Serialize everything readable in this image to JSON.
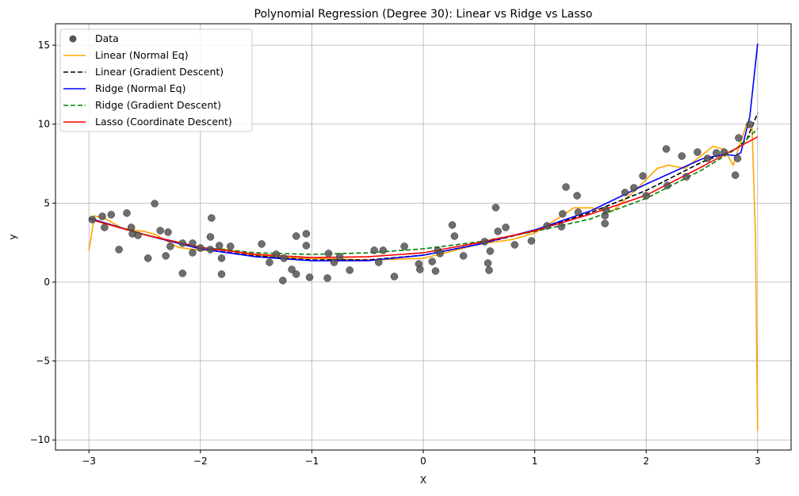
{
  "chart_data": {
    "type": "scatter",
    "title": "Polynomial Regression (Degree 30): Linear vs Ridge vs Lasso",
    "xlabel": "X",
    "ylabel": "y",
    "xlim": [
      -3.3,
      3.3
    ],
    "ylim": [
      -10.64,
      16.36
    ],
    "xticks": [
      -3,
      -2,
      -1,
      0,
      1,
      2,
      3
    ],
    "yticks": [
      -10,
      -5,
      0,
      5,
      10,
      15
    ],
    "xtick_labels": [
      "−3",
      "−2",
      "−1",
      "0",
      "1",
      "2",
      "3"
    ],
    "ytick_labels": [
      "−10",
      "−5",
      "0",
      "5",
      "10",
      "15"
    ],
    "grid": true,
    "legend_placement": "top-left",
    "scatter": {
      "name": "Data",
      "color": "#555555",
      "x": [
        -2.97,
        -2.88,
        -2.86,
        -2.8,
        -2.73,
        -2.66,
        -2.62,
        -2.61,
        -2.56,
        -2.47,
        -2.41,
        -2.36,
        -2.31,
        -2.29,
        -2.27,
        -2.16,
        -2.16,
        -2.07,
        -2.07,
        -2.0,
        -1.91,
        -1.9,
        -1.91,
        -1.83,
        -1.81,
        -1.81,
        -1.73,
        -1.45,
        -1.38,
        -1.32,
        -1.26,
        -1.25,
        -1.18,
        -1.14,
        -1.14,
        -1.05,
        -1.05,
        -1.02,
        -0.86,
        -0.85,
        -0.8,
        -0.75,
        -0.66,
        -0.44,
        -0.4,
        -0.36,
        -0.26,
        -0.17,
        -0.04,
        -0.03,
        0.08,
        0.11,
        0.13,
        0.15,
        0.26,
        0.28,
        0.36,
        0.55,
        0.58,
        0.59,
        0.6,
        0.65,
        0.67,
        0.74,
        0.82,
        0.97,
        1.11,
        1.24,
        1.25,
        1.28,
        1.38,
        1.39,
        1.63,
        1.63,
        1.64,
        1.81,
        1.89,
        1.97,
        2.0,
        2.18,
        2.19,
        2.32,
        2.36,
        2.46,
        2.55,
        2.63,
        2.7,
        2.8,
        2.82,
        2.83,
        2.93
      ],
      "y": [
        3.96,
        4.16,
        3.46,
        4.27,
        2.06,
        4.37,
        3.46,
        3.06,
        2.96,
        1.51,
        4.97,
        3.26,
        1.66,
        3.16,
        2.26,
        2.46,
        0.55,
        2.46,
        1.86,
        2.16,
        2.86,
        4.06,
        2.06,
        2.31,
        1.51,
        0.5,
        2.26,
        2.41,
        1.25,
        1.76,
        0.1,
        1.51,
        0.8,
        2.91,
        0.5,
        3.06,
        2.31,
        0.3,
        0.25,
        1.81,
        1.25,
        1.61,
        0.75,
        2.01,
        1.25,
        2.01,
        0.35,
        2.26,
        1.15,
        0.8,
        1.3,
        0.7,
        2.01,
        1.81,
        3.61,
        2.91,
        1.66,
        2.56,
        1.2,
        0.75,
        1.96,
        4.72,
        3.21,
        3.46,
        2.36,
        2.61,
        3.56,
        3.51,
        4.32,
        6.02,
        5.47,
        4.42,
        4.21,
        3.71,
        4.57,
        5.67,
        5.97,
        6.72,
        5.47,
        8.43,
        6.12,
        7.98,
        6.67,
        8.23,
        7.83,
        8.18,
        8.23,
        6.77,
        7.83,
        9.13,
        9.98
      ]
    },
    "series": [
      {
        "name": "Linear (Normal Eq)",
        "color": "#FFA500",
        "style": "solid",
        "x": [
          -3,
          -2.95,
          -2.85,
          -2.7,
          -2.5,
          -2.4,
          -2.2,
          -2.0,
          -1.8,
          -1.6,
          -1.3,
          -1.0,
          -0.5,
          0,
          0.5,
          0.8,
          1.0,
          1.2,
          1.35,
          1.5,
          1.7,
          1.9,
          2.1,
          2.2,
          2.35,
          2.6,
          2.7,
          2.78,
          2.9,
          2.95,
          2.98,
          3.0
        ],
        "y": [
          2.0,
          4.2,
          4.0,
          3.4,
          3.2,
          3.0,
          2.2,
          2.0,
          2.1,
          1.8,
          1.55,
          1.5,
          1.4,
          1.5,
          2.4,
          2.7,
          3.1,
          4.0,
          4.7,
          4.7,
          4.5,
          5.8,
          7.2,
          7.4,
          7.2,
          8.6,
          8.4,
          7.4,
          10.0,
          9.8,
          3.0,
          -9.4
        ]
      },
      {
        "name": "Linear (Gradient Descent)",
        "color": "#000000",
        "style": "dashed",
        "x": [
          -3,
          -2.5,
          -2,
          -1.5,
          -1,
          -0.5,
          0,
          0.5,
          1,
          1.5,
          2,
          2.5,
          2.8,
          2.9,
          3.0
        ],
        "y": [
          4.0,
          3.0,
          2.1,
          1.65,
          1.4,
          1.4,
          1.7,
          2.4,
          3.25,
          4.4,
          5.8,
          7.6,
          8.4,
          9.0,
          10.7
        ]
      },
      {
        "name": "Ridge (Normal Eq)",
        "color": "#0000FF",
        "style": "solid",
        "x": [
          -3,
          -2.5,
          -2,
          -1.5,
          -1,
          -0.5,
          0,
          0.5,
          1,
          1.5,
          2,
          2.5,
          2.7,
          2.8,
          2.85,
          2.93,
          3.0
        ],
        "y": [
          4.05,
          3.0,
          2.1,
          1.6,
          1.35,
          1.35,
          1.7,
          2.4,
          3.3,
          4.5,
          6.2,
          7.8,
          8.1,
          8.0,
          8.2,
          10.5,
          15.1
        ]
      },
      {
        "name": "Ridge (Gradient Descent)",
        "color": "#008000",
        "style": "dashed",
        "x": [
          -3,
          -2.5,
          -2,
          -1.5,
          -1,
          -0.5,
          0,
          0.5,
          1,
          1.5,
          2,
          2.5,
          2.8,
          3.0
        ],
        "y": [
          4.0,
          3.0,
          2.2,
          1.85,
          1.75,
          1.85,
          2.1,
          2.55,
          3.2,
          4.0,
          5.3,
          7.1,
          8.4,
          9.7
        ]
      },
      {
        "name": "Lasso (Coordinate Descent)",
        "color": "#FF0000",
        "style": "solid",
        "x": [
          -3,
          -2.5,
          -2,
          -1.5,
          -1,
          -0.5,
          0,
          0.5,
          1,
          1.5,
          2,
          2.5,
          3.0
        ],
        "y": [
          4.0,
          3.0,
          2.2,
          1.75,
          1.55,
          1.6,
          1.85,
          2.5,
          3.25,
          4.3,
          5.5,
          7.3,
          9.2
        ]
      }
    ]
  }
}
